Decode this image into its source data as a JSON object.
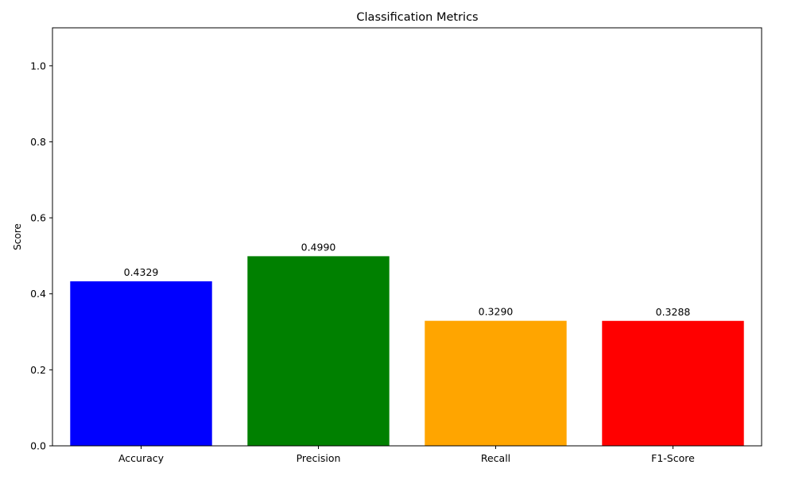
{
  "chart_data": {
    "type": "bar",
    "title": "Classification Metrics",
    "xlabel": "",
    "ylabel": "Score",
    "categories": [
      "Accuracy",
      "Precision",
      "Recall",
      "F1-Score"
    ],
    "values": [
      0.4329,
      0.499,
      0.329,
      0.3288
    ],
    "value_labels": [
      "0.4329",
      "0.4990",
      "0.3290",
      "0.3288"
    ],
    "colors": [
      "#0000ff",
      "#008000",
      "#ffa500",
      "#ff0000"
    ],
    "ylim": [
      0,
      1.1
    ],
    "yticks": [
      0.0,
      0.2,
      0.4,
      0.6,
      0.8,
      1.0
    ],
    "ytick_labels": [
      "0.0",
      "0.2",
      "0.4",
      "0.6",
      "0.8",
      "1.0"
    ],
    "grid": false,
    "legend": "none"
  }
}
